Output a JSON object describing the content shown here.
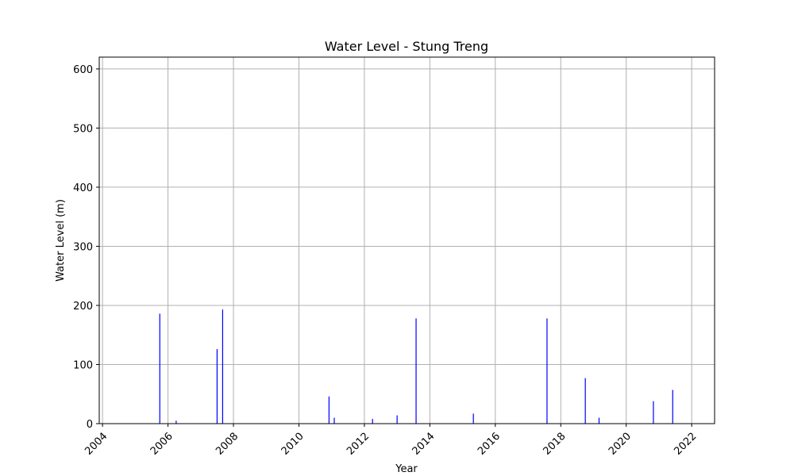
{
  "chart_data": {
    "type": "bar",
    "title": "Water Level - Stung Treng",
    "xlabel": "Year",
    "ylabel": "Water Level (m)",
    "xlim": [
      2003.9,
      2022.7
    ],
    "ylim": [
      0,
      620
    ],
    "x_ticks": [
      2004,
      2006,
      2008,
      2010,
      2012,
      2014,
      2016,
      2018,
      2020,
      2022
    ],
    "y_ticks": [
      0,
      100,
      200,
      300,
      400,
      500,
      600
    ],
    "grid": true,
    "bar_color": "#0000ff",
    "points": [
      {
        "x": 2005.75,
        "y": 186
      },
      {
        "x": 2006.25,
        "y": 5
      },
      {
        "x": 2007.5,
        "y": 126
      },
      {
        "x": 2007.67,
        "y": 193
      },
      {
        "x": 2010.92,
        "y": 46
      },
      {
        "x": 2011.08,
        "y": 10
      },
      {
        "x": 2012.25,
        "y": 8
      },
      {
        "x": 2013.0,
        "y": 14
      },
      {
        "x": 2013.58,
        "y": 178
      },
      {
        "x": 2015.33,
        "y": 17
      },
      {
        "x": 2017.58,
        "y": 178
      },
      {
        "x": 2018.75,
        "y": 77
      },
      {
        "x": 2019.17,
        "y": 10
      },
      {
        "x": 2020.83,
        "y": 38
      },
      {
        "x": 2021.42,
        "y": 57
      }
    ]
  }
}
